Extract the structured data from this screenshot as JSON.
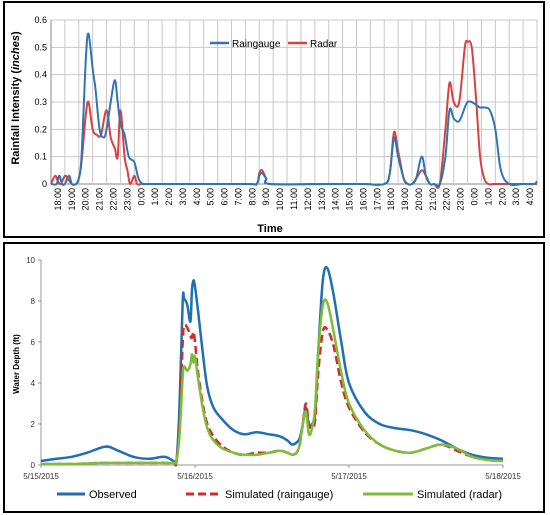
{
  "colors": {
    "raingauge": "#2e75b6",
    "radar": "#d94040",
    "observed": "#1f6fb4",
    "sim_raingauge": "#d42a2a",
    "sim_radar": "#7cbd3a",
    "grid": "#c8c8c8"
  },
  "chart_data": [
    {
      "type": "line",
      "xlabel": "Time",
      "ylabel": "Rainfall Intensity (inches)",
      "ylabel_main": "Rainfall Intensity (",
      "ylabel_italic": "inches",
      "ylabel_close": ")",
      "ylim": [
        0,
        0.6
      ],
      "yticks": [
        "0",
        "0.1",
        "0.2",
        "0.3",
        "0.4",
        "0.5",
        "0.6"
      ],
      "grid": true,
      "legend_position": "top-center",
      "categories": [
        "18:00",
        "19:00",
        "20:00",
        "21:00",
        "22:00",
        "23:00",
        "0:00",
        "1:00",
        "2:00",
        "3:00",
        "4:00",
        "5:00",
        "6:00",
        "7:00",
        "8:00",
        "9:00",
        "10:00",
        "11:00",
        "12:00",
        "13:00",
        "14:00",
        "15:00",
        "16:00",
        "17:00",
        "18:00",
        "19:00",
        "20:00",
        "21:00",
        "22:00",
        "23:00",
        "0:00",
        "1:00",
        "2:00",
        "3:00",
        "4:00"
      ],
      "series": [
        {
          "name": "Raingauge",
          "x": [
            0,
            0.4,
            0.6,
            0.8,
            1.0,
            1.3,
            1.5,
            1.8,
            2.0,
            2.2,
            2.5,
            2.7,
            3.0,
            3.2,
            3.5,
            3.8,
            4.0,
            4.3,
            4.6,
            4.8,
            5.0,
            5.3,
            5.6,
            6.0,
            6.3,
            6.6,
            6.8,
            7.0,
            7.3,
            7.6,
            8.0,
            14.0,
            14.8,
            15.0,
            15.2,
            15.5,
            15.8,
            20.0,
            22.5,
            24.0,
            24.4,
            24.7,
            25.0,
            25.4,
            25.7,
            26.0,
            26.3,
            26.7,
            27.0,
            27.3,
            27.6,
            28.0,
            28.4,
            28.7,
            29.0,
            29.4,
            29.8,
            30.0,
            30.3,
            30.6,
            30.9,
            31.2,
            31.6,
            32.0,
            32.4,
            33.0,
            34.0,
            34.8,
            35.0
          ],
          "values": [
            0,
            0,
            0.03,
            0,
            0,
            0.03,
            0,
            0,
            0.02,
            0.1,
            0.45,
            0.55,
            0.42,
            0.35,
            0.2,
            0.17,
            0.2,
            0.3,
            0.38,
            0.3,
            0.22,
            0.18,
            0.1,
            0.08,
            0.02,
            0,
            0,
            0,
            0,
            0,
            0,
            0,
            0,
            0.03,
            0.04,
            0.02,
            0,
            0,
            0,
            0,
            0.04,
            0.17,
            0.1,
            0.02,
            0,
            0,
            0.02,
            0.1,
            0.03,
            0,
            0,
            0,
            0.1,
            0.27,
            0.24,
            0.23,
            0.28,
            0.3,
            0.3,
            0.29,
            0.28,
            0.28,
            0.27,
            0.2,
            0.05,
            0,
            0,
            0,
            0.01
          ]
        },
        {
          "name": "Radar",
          "x": [
            0,
            0.3,
            0.5,
            0.7,
            1.0,
            1.2,
            1.5,
            1.8,
            2.0,
            2.2,
            2.5,
            2.7,
            3.0,
            3.3,
            3.6,
            4.0,
            4.3,
            4.6,
            4.8,
            5.0,
            5.3,
            5.5,
            5.7,
            6.0,
            6.2,
            6.5,
            6.8,
            7.0,
            7.3,
            8.0,
            14.0,
            14.8,
            15.0,
            15.2,
            15.5,
            15.8,
            20.0,
            22.5,
            24.0,
            24.4,
            24.7,
            25.0,
            25.4,
            25.7,
            26.0,
            26.3,
            26.7,
            27.0,
            27.3,
            27.6,
            28.0,
            28.4,
            28.7,
            29.0,
            29.4,
            29.8,
            30.0,
            30.3,
            30.6,
            30.9,
            31.2,
            31.5,
            31.8,
            32.0,
            32.4,
            33.0,
            35.0
          ],
          "values": [
            0,
            0.03,
            0.01,
            0,
            0.03,
            0.02,
            0,
            0,
            0.02,
            0.08,
            0.25,
            0.3,
            0.2,
            0.18,
            0.18,
            0.27,
            0.17,
            0.13,
            0.1,
            0.27,
            0.1,
            0.05,
            0,
            0.03,
            0,
            0,
            0,
            0,
            0,
            0,
            0,
            0,
            0.04,
            0.05,
            0.02,
            0,
            0,
            0,
            0,
            0.04,
            0.19,
            0.12,
            0.02,
            0,
            0,
            0.02,
            0.05,
            0.03,
            0,
            0,
            0,
            0.2,
            0.37,
            0.3,
            0.3,
            0.5,
            0.52,
            0.5,
            0.32,
            0.1,
            0.02,
            0,
            0,
            0,
            0,
            0,
            0
          ]
        }
      ]
    },
    {
      "type": "line",
      "xlabel": "",
      "ylabel": "Water Depth (ft)",
      "ylim": [
        0,
        10
      ],
      "yticks": [
        "0",
        "2",
        "4",
        "6",
        "8",
        "10"
      ],
      "xlim": [
        0,
        3
      ],
      "xticks": [
        "5/15/2015",
        "5/16/2015",
        "5/17/2015",
        "5/18/2015"
      ],
      "grid": false,
      "legend_position": "bottom",
      "series": [
        {
          "name": "Observed",
          "x": [
            0,
            0.1,
            0.2,
            0.3,
            0.42,
            0.5,
            0.6,
            0.7,
            0.8,
            0.86,
            0.88,
            0.9,
            0.92,
            0.93,
            0.95,
            0.97,
            0.98,
            0.99,
            1.0,
            1.02,
            1.05,
            1.08,
            1.12,
            1.18,
            1.25,
            1.32,
            1.4,
            1.48,
            1.55,
            1.6,
            1.63,
            1.66,
            1.68,
            1.7,
            1.72,
            1.74,
            1.76,
            1.78,
            1.8,
            1.83,
            1.86,
            1.9,
            1.95,
            2.0,
            2.1,
            2.2,
            2.3,
            2.4,
            2.5,
            2.6,
            2.7,
            2.8,
            2.9,
            3.0
          ],
          "values": [
            0.2,
            0.3,
            0.4,
            0.6,
            0.9,
            0.7,
            0.4,
            0.3,
            0.4,
            0.2,
            0.2,
            3.0,
            8.0,
            8.1,
            7.8,
            7.0,
            8.5,
            9.0,
            8.7,
            7.5,
            5.5,
            3.8,
            2.8,
            2.2,
            1.7,
            1.5,
            1.6,
            1.5,
            1.4,
            1.2,
            1.0,
            1.1,
            1.3,
            2.0,
            2.8,
            1.9,
            2.0,
            2.5,
            5.5,
            9.0,
            9.6,
            8.3,
            6.0,
            4.0,
            2.6,
            2.0,
            1.8,
            1.7,
            1.5,
            1.2,
            0.8,
            0.5,
            0.35,
            0.3
          ]
        },
        {
          "name": "Simulated (raingauge)",
          "x": [
            0,
            0.2,
            0.4,
            0.6,
            0.8,
            0.86,
            0.88,
            0.9,
            0.92,
            0.93,
            0.95,
            0.97,
            0.98,
            0.99,
            1.0,
            1.02,
            1.05,
            1.08,
            1.12,
            1.18,
            1.25,
            1.32,
            1.4,
            1.48,
            1.55,
            1.6,
            1.63,
            1.66,
            1.68,
            1.7,
            1.72,
            1.74,
            1.76,
            1.78,
            1.8,
            1.83,
            1.86,
            1.9,
            1.95,
            2.0,
            2.1,
            2.2,
            2.3,
            2.4,
            2.5,
            2.6,
            2.7,
            2.8,
            2.9,
            3.0
          ],
          "values": [
            0.05,
            0.05,
            0.1,
            0.1,
            0.1,
            0.1,
            0.2,
            2.0,
            6.0,
            6.8,
            6.7,
            6.3,
            6.2,
            6.5,
            6.0,
            4.5,
            3.0,
            2.0,
            1.4,
            0.9,
            0.6,
            0.5,
            0.6,
            0.6,
            0.7,
            0.6,
            0.5,
            0.6,
            1.0,
            2.0,
            3.0,
            2.0,
            1.8,
            2.2,
            4.5,
            6.5,
            6.6,
            5.8,
            4.0,
            2.8,
            1.6,
            1.0,
            0.7,
            0.6,
            0.8,
            1.0,
            0.7,
            0.4,
            0.25,
            0.2
          ]
        },
        {
          "name": "Simulated (radar)",
          "x": [
            0,
            0.2,
            0.4,
            0.6,
            0.8,
            0.86,
            0.88,
            0.9,
            0.92,
            0.93,
            0.95,
            0.97,
            0.98,
            0.99,
            1.0,
            1.02,
            1.05,
            1.08,
            1.12,
            1.18,
            1.25,
            1.32,
            1.4,
            1.48,
            1.55,
            1.6,
            1.63,
            1.66,
            1.68,
            1.7,
            1.72,
            1.74,
            1.76,
            1.78,
            1.8,
            1.83,
            1.86,
            1.9,
            1.95,
            2.0,
            2.1,
            2.2,
            2.3,
            2.4,
            2.5,
            2.6,
            2.7,
            2.8,
            2.9,
            3.0
          ],
          "values": [
            0.05,
            0.05,
            0.1,
            0.1,
            0.1,
            0.1,
            0.2,
            1.5,
            4.3,
            4.8,
            4.6,
            4.9,
            5.4,
            5.0,
            5.3,
            4.2,
            2.8,
            1.8,
            1.2,
            0.8,
            0.6,
            0.5,
            0.5,
            0.6,
            0.7,
            0.6,
            0.5,
            0.6,
            1.0,
            2.0,
            2.6,
            1.5,
            1.8,
            2.8,
            5.5,
            7.8,
            7.9,
            6.5,
            4.5,
            3.0,
            1.7,
            1.0,
            0.7,
            0.6,
            0.8,
            1.0,
            0.8,
            0.4,
            0.25,
            0.2
          ]
        }
      ]
    }
  ]
}
